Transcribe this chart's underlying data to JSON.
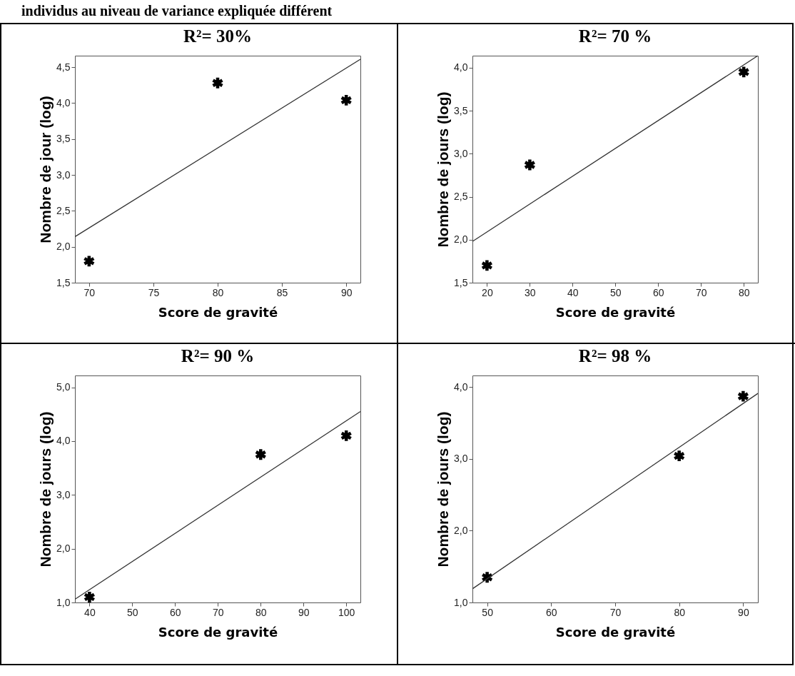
{
  "chart_data": [
    {
      "type": "scatter",
      "title": "R²= 30%",
      "xlabel": "Score de gravité",
      "ylabel": "Nombre de jour (log)",
      "annotations": [
        "individus au niveau de variance expliquée différent"
      ],
      "grid": false,
      "xlim": [
        68.9,
        91.1
      ],
      "ylim": [
        1.5,
        4.66
      ],
      "xticks": [
        70,
        75,
        80,
        85,
        90
      ],
      "yticks": [
        {
          "value": 1.5,
          "label": "1,5"
        },
        {
          "value": 2,
          "label": "2,0"
        },
        {
          "value": 2.5,
          "label": "2,5"
        },
        {
          "value": 3,
          "label": "3,0"
        },
        {
          "value": 3.5,
          "label": "3,5"
        },
        {
          "value": 4,
          "label": "4,0"
        },
        {
          "value": 4.5,
          "label": "4,5"
        }
      ],
      "series": [
        {
          "type": "scatter",
          "marker": "cross",
          "color": "#000000",
          "x": [
            70,
            80,
            90
          ],
          "values": [
            1.8,
            4.28,
            4.04
          ]
        },
        {
          "type": "line",
          "marker": "none",
          "color": "#333333",
          "x": [
            68.9,
            91.1
          ],
          "values": [
            2.14,
            4.61
          ]
        }
      ]
    },
    {
      "type": "scatter",
      "title": "R²= 70 %",
      "xlabel": "Score de gravité",
      "ylabel": "Nombre de jours (log)",
      "grid": false,
      "xlim": [
        16.6,
        83.3
      ],
      "ylim": [
        1.5,
        4.14
      ],
      "xticks": [
        20,
        30,
        40,
        50,
        60,
        70,
        80
      ],
      "yticks": [
        {
          "value": 1.5,
          "label": "1,5"
        },
        {
          "value": 2,
          "label": "2,0"
        },
        {
          "value": 2.5,
          "label": "2,5"
        },
        {
          "value": 3,
          "label": "3,0"
        },
        {
          "value": 3.5,
          "label": "3,5"
        },
        {
          "value": 4,
          "label": "4,0"
        }
      ],
      "series": [
        {
          "type": "scatter",
          "marker": "cross",
          "color": "#000000",
          "x": [
            20,
            30,
            80
          ],
          "values": [
            1.7,
            2.87,
            3.95
          ]
        },
        {
          "type": "line",
          "marker": "none",
          "color": "#333333",
          "x": [
            16.6,
            83.3
          ],
          "values": [
            1.98,
            4.14
          ]
        }
      ]
    },
    {
      "type": "scatter",
      "title": "R²= 90 %",
      "xlabel": "Score de gravité",
      "ylabel": "Nombre de jours (log)",
      "grid": false,
      "xlim": [
        36.6,
        103.3
      ],
      "ylim": [
        1,
        5.22
      ],
      "xticks": [
        40,
        50,
        60,
        70,
        80,
        90,
        100
      ],
      "yticks": [
        {
          "value": 1,
          "label": "1,0"
        },
        {
          "value": 2,
          "label": "2,0"
        },
        {
          "value": 3,
          "label": "3,0"
        },
        {
          "value": 4,
          "label": "4,0"
        },
        {
          "value": 5,
          "label": "5,0"
        }
      ],
      "series": [
        {
          "type": "scatter",
          "marker": "cross",
          "color": "#000000",
          "x": [
            40,
            80,
            100
          ],
          "values": [
            1.1,
            3.75,
            4.1
          ]
        },
        {
          "type": "line",
          "marker": "none",
          "color": "#333333",
          "x": [
            36.6,
            103.3
          ],
          "values": [
            1.06,
            4.55
          ]
        }
      ]
    },
    {
      "type": "scatter",
      "title": "R²= 98 %",
      "xlabel": "Score de gravité",
      "ylabel": "Nombre de jours (log)",
      "grid": false,
      "xlim": [
        47.7,
        92.3
      ],
      "ylim": [
        1,
        4.16
      ],
      "xticks": [
        50,
        60,
        70,
        80,
        90
      ],
      "yticks": [
        {
          "value": 1,
          "label": "1,0"
        },
        {
          "value": 2,
          "label": "2,0"
        },
        {
          "value": 3,
          "label": "3,0"
        },
        {
          "value": 4,
          "label": "4,0"
        }
      ],
      "series": [
        {
          "type": "scatter",
          "marker": "cross",
          "color": "#000000",
          "x": [
            50,
            80,
            90
          ],
          "values": [
            1.35,
            3.04,
            3.87
          ]
        },
        {
          "type": "line",
          "marker": "none",
          "color": "#333333",
          "x": [
            47.7,
            92.3
          ],
          "values": [
            1.19,
            3.91
          ]
        }
      ]
    }
  ]
}
